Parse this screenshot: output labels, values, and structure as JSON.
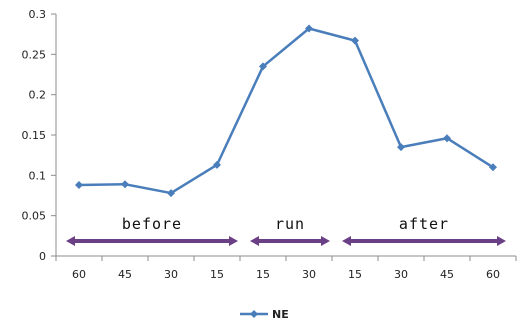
{
  "chart_data": {
    "type": "line",
    "categories": [
      "60",
      "45",
      "30",
      "15",
      "15",
      "30",
      "15",
      "30",
      "45",
      "60"
    ],
    "series": [
      {
        "name": "NE",
        "values": [
          0.088,
          0.089,
          0.078,
          0.113,
          0.235,
          0.282,
          0.267,
          0.135,
          0.146,
          0.11
        ],
        "color": "#4a7ebb"
      }
    ],
    "ylim": [
      0,
      0.3
    ],
    "yticks": [
      "0",
      "0.05",
      "0.1",
      "0.15",
      "0.2",
      "0.25",
      "0.3"
    ],
    "grid": false,
    "legend": "bottom",
    "phases": [
      {
        "label": "before",
        "start_index": 0,
        "end_index": 3
      },
      {
        "label": "run",
        "start_index": 4,
        "end_index": 5
      },
      {
        "label": "after",
        "start_index": 6,
        "end_index": 9
      }
    ],
    "phase_arrow_color": "#6b3f86",
    "axis_color": "#8c8c8c"
  }
}
